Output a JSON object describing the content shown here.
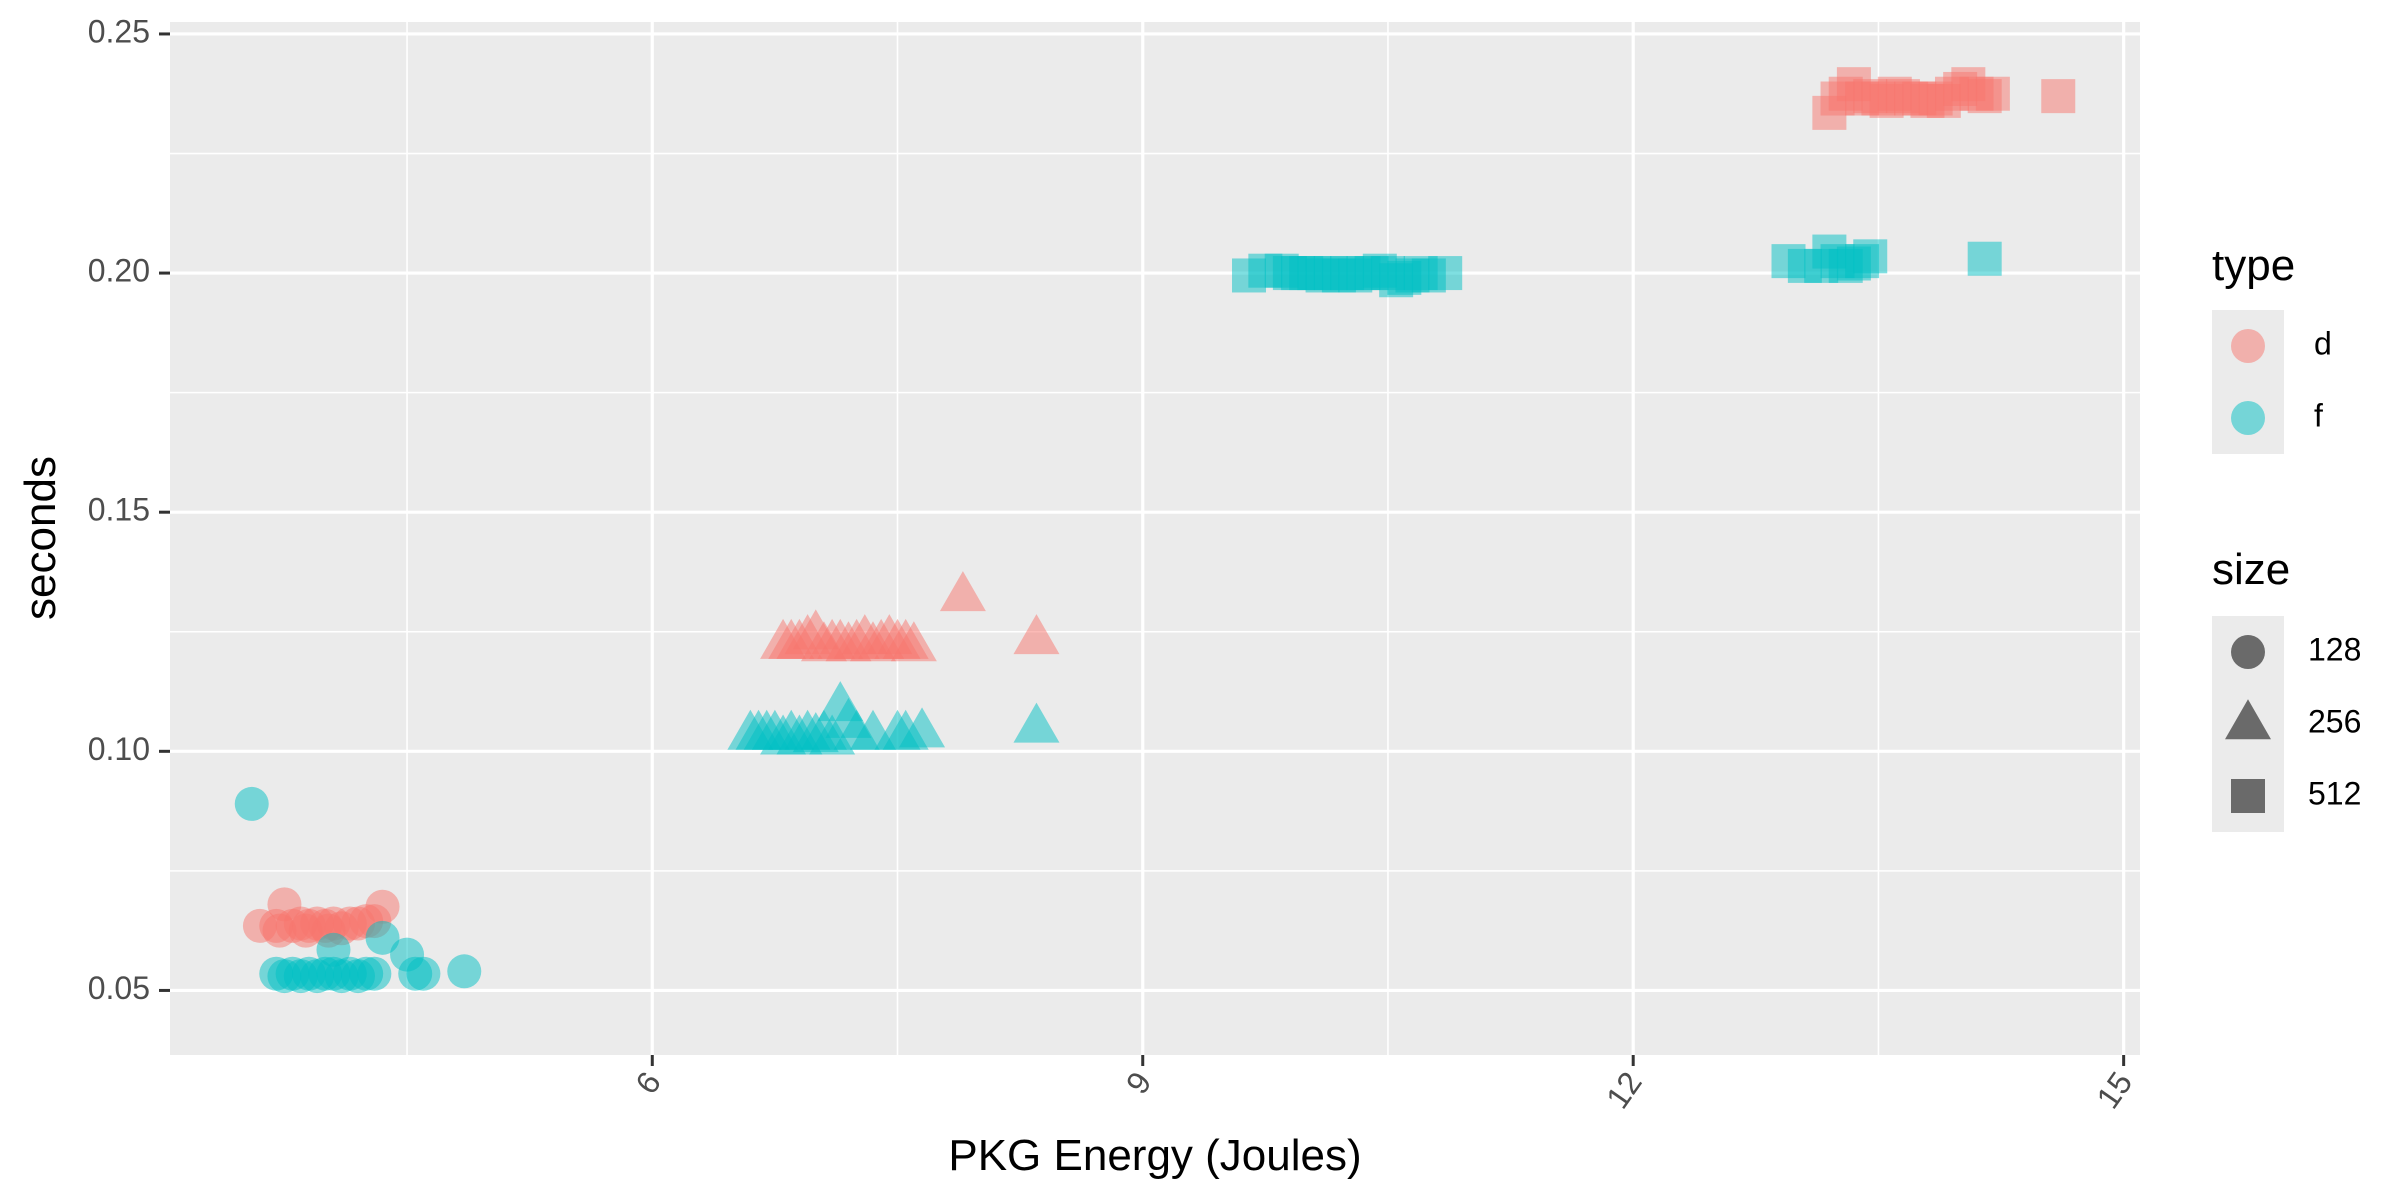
{
  "chart_data": {
    "type": "scatter",
    "xlabel": "PKG Energy (Joules)",
    "ylabel": "seconds",
    "xlim": [
      3.05,
      15.1
    ],
    "ylim": [
      0.0365,
      0.2525
    ],
    "x_ticks": [
      6,
      9,
      12,
      15
    ],
    "x_tick_labels": [
      "6",
      "9",
      "12",
      "15"
    ],
    "y_ticks": [
      0.05,
      0.1,
      0.15,
      0.2,
      0.25
    ],
    "y_tick_labels": [
      "0.05",
      "0.10",
      "0.15",
      "0.20",
      "0.25"
    ],
    "grid": true,
    "legend_position": "right",
    "legends": [
      {
        "title": "type",
        "items": [
          {
            "label": "d",
            "color": "#F8766D"
          },
          {
            "label": "f",
            "color": "#00BFC4"
          }
        ]
      },
      {
        "title": "size",
        "items": [
          {
            "label": "128",
            "shape": "circle"
          },
          {
            "label": "256",
            "shape": "triangle"
          },
          {
            "label": "512",
            "shape": "square"
          }
        ]
      }
    ],
    "series": [
      {
        "type": "d",
        "size": "128",
        "points": [
          [
            3.6,
            0.0635
          ],
          [
            3.7,
            0.0635
          ],
          [
            3.75,
            0.068
          ],
          [
            3.8,
            0.0635
          ],
          [
            3.85,
            0.064
          ],
          [
            3.9,
            0.0635
          ],
          [
            3.95,
            0.064
          ],
          [
            4.0,
            0.0635
          ],
          [
            4.05,
            0.064
          ],
          [
            4.1,
            0.063
          ],
          [
            4.15,
            0.064
          ],
          [
            4.2,
            0.064
          ],
          [
            4.25,
            0.0645
          ],
          [
            4.3,
            0.0645
          ],
          [
            4.35,
            0.0675
          ],
          [
            3.72,
            0.0625
          ],
          [
            3.88,
            0.0625
          ],
          [
            4.02,
            0.0625
          ]
        ]
      },
      {
        "type": "f",
        "size": "128",
        "points": [
          [
            3.55,
            0.089
          ],
          [
            3.7,
            0.0535
          ],
          [
            3.75,
            0.053
          ],
          [
            3.8,
            0.0535
          ],
          [
            3.85,
            0.053
          ],
          [
            3.9,
            0.0535
          ],
          [
            3.95,
            0.053
          ],
          [
            4.0,
            0.0535
          ],
          [
            4.05,
            0.0535
          ],
          [
            4.1,
            0.053
          ],
          [
            4.15,
            0.0535
          ],
          [
            4.2,
            0.053
          ],
          [
            4.25,
            0.0535
          ],
          [
            4.3,
            0.0535
          ],
          [
            4.05,
            0.0585
          ],
          [
            4.35,
            0.061
          ],
          [
            4.5,
            0.0575
          ],
          [
            4.55,
            0.0535
          ],
          [
            4.6,
            0.0535
          ],
          [
            4.85,
            0.054
          ]
        ]
      },
      {
        "type": "d",
        "size": "256",
        "points": [
          [
            6.8,
            0.1225
          ],
          [
            6.85,
            0.1225
          ],
          [
            6.9,
            0.1225
          ],
          [
            6.95,
            0.1235
          ],
          [
            7.0,
            0.1245
          ],
          [
            7.05,
            0.122
          ],
          [
            7.1,
            0.1225
          ],
          [
            7.15,
            0.1225
          ],
          [
            7.2,
            0.122
          ],
          [
            7.25,
            0.1225
          ],
          [
            7.3,
            0.1235
          ],
          [
            7.35,
            0.122
          ],
          [
            7.4,
            0.1225
          ],
          [
            7.45,
            0.1235
          ],
          [
            7.5,
            0.1225
          ],
          [
            7.55,
            0.1225
          ],
          [
            7.6,
            0.122
          ],
          [
            7.9,
            0.1325
          ],
          [
            8.35,
            0.1235
          ]
        ]
      },
      {
        "type": "f",
        "size": "256",
        "points": [
          [
            6.6,
            0.1035
          ],
          [
            6.65,
            0.1035
          ],
          [
            6.7,
            0.1035
          ],
          [
            6.75,
            0.1035
          ],
          [
            6.8,
            0.1025
          ],
          [
            6.85,
            0.1035
          ],
          [
            6.9,
            0.1025
          ],
          [
            6.95,
            0.1035
          ],
          [
            7.0,
            0.103
          ],
          [
            7.05,
            0.1035
          ],
          [
            7.1,
            0.1025
          ],
          [
            7.15,
            0.1095
          ],
          [
            7.2,
            0.106
          ],
          [
            7.25,
            0.1035
          ],
          [
            7.35,
            0.1035
          ],
          [
            7.5,
            0.1035
          ],
          [
            7.55,
            0.1035
          ],
          [
            7.65,
            0.104
          ],
          [
            8.35,
            0.105
          ]
        ]
      },
      {
        "type": "d",
        "size": "512",
        "points": [
          [
            13.2,
            0.2335
          ],
          [
            13.25,
            0.2365
          ],
          [
            13.3,
            0.2375
          ],
          [
            13.35,
            0.2395
          ],
          [
            13.4,
            0.2365
          ],
          [
            13.45,
            0.237
          ],
          [
            13.5,
            0.2365
          ],
          [
            13.55,
            0.236
          ],
          [
            13.6,
            0.2375
          ],
          [
            13.65,
            0.237
          ],
          [
            13.7,
            0.2365
          ],
          [
            13.75,
            0.2365
          ],
          [
            13.8,
            0.236
          ],
          [
            13.85,
            0.2365
          ],
          [
            13.9,
            0.236
          ],
          [
            13.95,
            0.2375
          ],
          [
            14.0,
            0.2385
          ],
          [
            14.05,
            0.2395
          ],
          [
            14.1,
            0.2375
          ],
          [
            14.15,
            0.237
          ],
          [
            14.2,
            0.2375
          ],
          [
            14.6,
            0.237
          ]
        ]
      },
      {
        "type": "f",
        "size": "512",
        "points": [
          [
            9.65,
            0.1995
          ],
          [
            9.75,
            0.2005
          ],
          [
            9.85,
            0.2005
          ],
          [
            9.9,
            0.2
          ],
          [
            9.95,
            0.2
          ],
          [
            10.0,
            0.2
          ],
          [
            10.05,
            0.2
          ],
          [
            10.1,
            0.1995
          ],
          [
            10.15,
            0.2
          ],
          [
            10.2,
            0.1995
          ],
          [
            10.25,
            0.2
          ],
          [
            10.3,
            0.1995
          ],
          [
            10.35,
            0.2
          ],
          [
            10.4,
            0.2
          ],
          [
            10.45,
            0.2005
          ],
          [
            10.5,
            0.2
          ],
          [
            10.55,
            0.1985
          ],
          [
            10.6,
            0.199
          ],
          [
            10.65,
            0.1995
          ],
          [
            10.7,
            0.2
          ],
          [
            10.75,
            0.1995
          ],
          [
            10.85,
            0.2
          ],
          [
            12.95,
            0.2025
          ],
          [
            13.05,
            0.2015
          ],
          [
            13.15,
            0.2015
          ],
          [
            13.2,
            0.2045
          ],
          [
            13.25,
            0.2025
          ],
          [
            13.3,
            0.2015
          ],
          [
            13.35,
            0.202
          ],
          [
            13.4,
            0.2025
          ],
          [
            13.45,
            0.2035
          ],
          [
            14.15,
            0.203
          ]
        ]
      }
    ]
  }
}
